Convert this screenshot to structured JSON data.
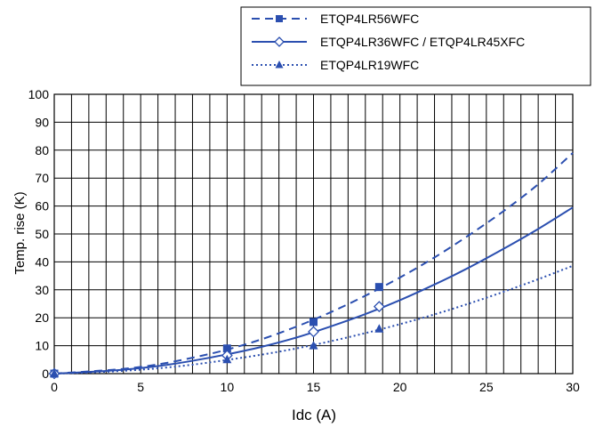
{
  "chart_data": {
    "type": "line",
    "xlabel": "Idc (A)",
    "ylabel": "Temp. rise (K)",
    "xlim": [
      0,
      30
    ],
    "ylim": [
      0,
      100
    ],
    "x_ticks": [
      "0",
      "5",
      "10",
      "15",
      "20",
      "25",
      "30"
    ],
    "y_ticks": [
      "0",
      "10",
      "20",
      "30",
      "40",
      "50",
      "60",
      "70",
      "80",
      "90",
      "100"
    ],
    "grid": true,
    "minor_x_step": 1,
    "legend_position": "top-right, boxed",
    "series": [
      {
        "name": "ETQP4LR56WFC",
        "line_style": "dashed",
        "marker": "square",
        "color": "#2b4fb0",
        "x": [
          0,
          2,
          4,
          6,
          8,
          10,
          12,
          14,
          16,
          18,
          20,
          22,
          24,
          26,
          28,
          30
        ],
        "y": [
          0,
          0.8,
          1.7,
          3.3,
          5.7,
          8.6,
          12.3,
          16.8,
          22.0,
          27.9,
          34.4,
          41.6,
          49.6,
          58.2,
          67.8,
          79
        ],
        "markers": [
          [
            0,
            0
          ],
          [
            10,
            9
          ],
          [
            15,
            18.5
          ],
          [
            18.8,
            31
          ]
        ]
      },
      {
        "name": "ETQP4LR36WFC / ETQP4LR45XFC",
        "line_style": "solid",
        "marker": "diamond-open",
        "color": "#2b4fb0",
        "x": [
          0,
          2,
          4,
          6,
          8,
          10,
          12,
          14,
          16,
          18,
          20,
          22,
          24,
          26,
          28,
          30
        ],
        "y": [
          0,
          0.6,
          1.4,
          2.7,
          4.6,
          6.9,
          9.6,
          12.9,
          16.9,
          21.3,
          26.3,
          31.9,
          38.0,
          44.7,
          51.8,
          59.5
        ],
        "markers": [
          [
            0,
            0
          ],
          [
            10,
            6.5
          ],
          [
            15,
            15
          ],
          [
            18.8,
            24
          ]
        ]
      },
      {
        "name": "ETQP4LR19WFC",
        "line_style": "dotted",
        "marker": "triangle",
        "color": "#2b4fb0",
        "x": [
          0,
          2,
          4,
          6,
          8,
          10,
          12,
          14,
          16,
          18,
          20,
          22,
          24,
          26,
          28,
          30
        ],
        "y": [
          0,
          0.4,
          1.0,
          1.9,
          3.2,
          4.9,
          6.8,
          9.0,
          11.6,
          14.5,
          17.7,
          21.2,
          25.1,
          29.3,
          33.8,
          38.6
        ],
        "markers": [
          [
            0,
            0
          ],
          [
            10,
            5
          ],
          [
            15,
            10
          ],
          [
            18.8,
            16
          ]
        ]
      }
    ]
  }
}
